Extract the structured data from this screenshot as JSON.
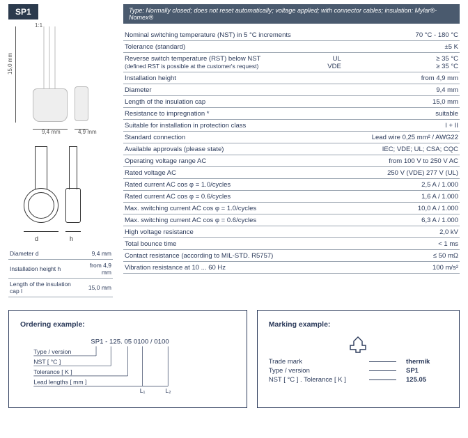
{
  "header": {
    "badge": "SP1",
    "type_bar": "Type: Normally closed; does not reset automatically; voltage applied; with connector cables; insulation: Mylar®-Nomex®"
  },
  "drawing": {
    "scale": "1:1",
    "height_mm": "15,0 mm",
    "width1_mm": "9,4 mm",
    "width2_mm": "4,9 mm",
    "d_label": "d",
    "h_label": "h"
  },
  "dim_table": [
    {
      "label": "Diameter d",
      "value": "9,4 mm"
    },
    {
      "label": "Installation height h",
      "value": "from 4,9 mm"
    },
    {
      "label": "Length of the insulation cap l",
      "value": "15,0 mm"
    }
  ],
  "specs": [
    {
      "label": "Nominal switching temperature (NST) in 5 °C increments",
      "value": "70 °C - 180 °C"
    },
    {
      "label": "Tolerance (standard)",
      "value": "±5 K"
    },
    {
      "label": "Reverse switch temperature (RST) below NST",
      "sub": "(defined RST is possible at the customer's request)",
      "mid": "UL\nVDE",
      "value": "≥ 35 °C\n≥ 35 °C"
    },
    {
      "label": "Installation height",
      "value": "from 4,9 mm"
    },
    {
      "label": "Diameter",
      "value": "9,4 mm"
    },
    {
      "label": "Length of the insulation cap",
      "value": "15,0 mm"
    },
    {
      "label": "Resistance to impregnation *",
      "value": "suitable"
    },
    {
      "label": "Suitable for installation in protection class",
      "value": "I + II"
    },
    {
      "label": "Standard connection",
      "value": "Lead wire 0,25 mm² / AWG22"
    },
    {
      "label": "Available approvals (please state)",
      "value": "IEC; VDE; UL; CSA; CQC"
    },
    {
      "label": "Operating voltage range AC",
      "value": "from 100 V to 250 V AC"
    },
    {
      "label": "Rated voltage AC",
      "value": "250 V (VDE) 277 V (UL)"
    },
    {
      "label": "Rated current AC cos φ = 1.0/cycles",
      "value": "2,5 A / 1.000"
    },
    {
      "label": "Rated current AC cos φ = 0.6/cycles",
      "value": "1,6 A / 1.000"
    },
    {
      "label": "Max. switching current  AC cos φ = 1.0/cycles",
      "value": "10,0 A / 1.000"
    },
    {
      "label": "Max. switching current  AC cos φ = 0.6/cycles",
      "value": "6,3 A / 1.000"
    },
    {
      "label": "High voltage resistance",
      "value": "2,0 kV"
    },
    {
      "label": "Total bounce time",
      "value": "< 1 ms"
    },
    {
      "label": "Contact resistance (according to MIL-STD. R5757)",
      "value": "≤ 50 mΩ"
    },
    {
      "label": "Vibration resistance at 10 ... 60 Hz",
      "value": "100 m/s²"
    }
  ],
  "ordering": {
    "title": "Ordering example:",
    "code": "SP1 - 125.    05 0100 / 0100",
    "f1": "Type / version",
    "f2": "NST [ °C ]",
    "f3": "Tolerance [ K ]",
    "f4": "Lead lengths [ mm ]",
    "l1": "L₁",
    "l2": "L₂"
  },
  "marking": {
    "title": "Marking example:",
    "r1_label": "Trade mark",
    "r1_val": "thermik",
    "r2_label": "Type / version",
    "r2_val": "SP1",
    "r3_label": "NST [ °C ] . Tolerance [ K ]",
    "r3_val": "125.05"
  }
}
